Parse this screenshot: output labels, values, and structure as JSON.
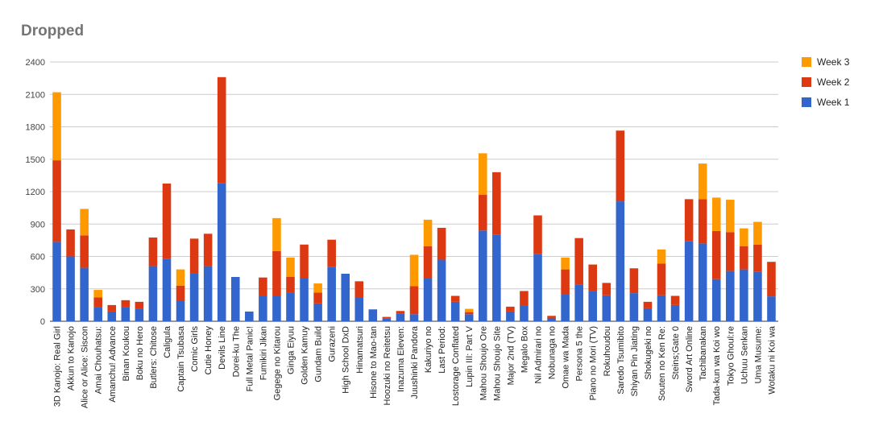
{
  "chart_data": {
    "type": "bar",
    "stacked": true,
    "title": "Dropped",
    "ylim": [
      0,
      2400
    ],
    "yticks": [
      0,
      300,
      600,
      900,
      1200,
      1500,
      1800,
      2100,
      2400
    ],
    "grid": true,
    "legend_position": "right",
    "categories": [
      "3D Kanojo: Real Girl",
      "Akkun to Kanojo",
      "Alice or Alice: Siscon",
      "Amai Chouhatsu:",
      "Amanchu! Advance",
      "Binan Koukou",
      "Boku no Hero",
      "Butlers: Chitose",
      "Caligula",
      "Captain Tsubasa",
      "Comic Girls",
      "Cutie Honey",
      "Devils Line",
      "Dorei-ku The",
      "Full Metal Panic!",
      "Fumikiri Jikan",
      "Gegege no Kitarou",
      "Ginga Eiyuu",
      "Golden Kamuy",
      "Gundam Build",
      "Gurazeni",
      "High School DxD",
      "Hinamatsuri",
      "Hisone to Mao-tan",
      "Hoozuki no Reitetsu",
      "Inazuma Eleven:",
      "Juushinki Pandora",
      "Kakuriyo no",
      "Last Period:",
      "Lostorage Conflated",
      "Lupin III: Part V",
      "Mahou Shoujo Ore",
      "Mahou Shoujo Site",
      "Major 2nd (TV)",
      "Megalo Box",
      "Nil Admirari no",
      "Nobunaga no",
      "Omae wa Mada",
      "Persona 5 the",
      "Piano no Mori (TV)",
      "Rokuhoudou",
      "Saredo Tsumibito",
      "Shiyan Pin Jiating",
      "Shokugeki no",
      "Souten no Ken Re:",
      "Steins;Gate 0",
      "Sword Art Online",
      "Tachibanakan",
      "Tada-kun wa Koi wo",
      "Tokyo Ghoul:re",
      "Uchuu Senkan",
      "Uma Musume:",
      "Wotaku ni Koi wa"
    ],
    "series": [
      {
        "name": "Week 1",
        "color": "#3366cc",
        "values": [
          735,
          600,
          495,
          130,
          90,
          130,
          115,
          510,
          580,
          190,
          440,
          510,
          1280,
          410,
          90,
          235,
          235,
          265,
          395,
          165,
          505,
          440,
          220,
          110,
          25,
          70,
          65,
          395,
          570,
          180,
          65,
          840,
          800,
          90,
          145,
          620,
          30,
          250,
          340,
          280,
          240,
          1110,
          260,
          120,
          240,
          150,
          740,
          720,
          390,
          465,
          480,
          460,
          230
        ]
      },
      {
        "name": "Week 2",
        "color": "#dc3912",
        "values": [
          755,
          250,
          300,
          90,
          60,
          65,
          65,
          265,
          695,
          140,
          325,
          300,
          980,
          0,
          0,
          170,
          415,
          145,
          315,
          100,
          250,
          0,
          150,
          0,
          15,
          25,
          260,
          300,
          295,
          55,
          20,
          330,
          580,
          45,
          135,
          360,
          20,
          230,
          430,
          245,
          115,
          655,
          230,
          60,
          295,
          85,
          390,
          410,
          445,
          360,
          215,
          250,
          320
        ]
      },
      {
        "name": "Week 3",
        "color": "#ff9900",
        "values": [
          630,
          0,
          245,
          70,
          0,
          0,
          0,
          0,
          0,
          150,
          0,
          0,
          0,
          0,
          0,
          0,
          305,
          180,
          0,
          85,
          0,
          0,
          0,
          0,
          0,
          0,
          290,
          245,
          0,
          0,
          30,
          385,
          0,
          0,
          0,
          0,
          0,
          110,
          0,
          0,
          0,
          0,
          0,
          0,
          130,
          0,
          0,
          330,
          310,
          300,
          165,
          210,
          0
        ]
      }
    ]
  }
}
